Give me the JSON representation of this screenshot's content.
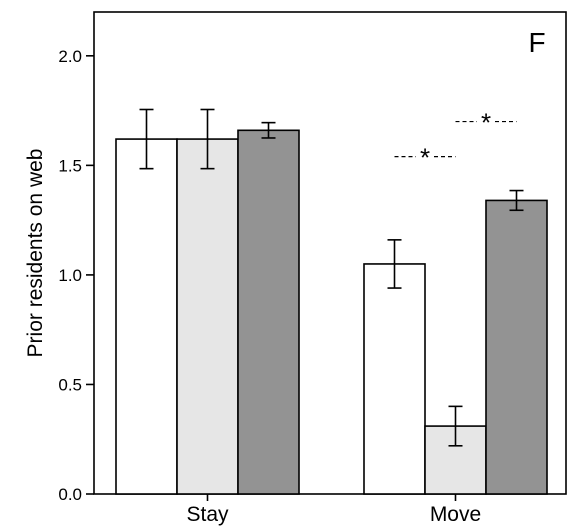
{
  "chart_data": {
    "type": "bar",
    "panel_label": "F",
    "title": "",
    "xlabel": "",
    "ylabel": "Prior residents on web",
    "ylim": [
      0,
      2.2
    ],
    "yticks": [
      0.0,
      0.5,
      1.0,
      1.5,
      2.0
    ],
    "ytick_labels": [
      "0.0",
      "0.5",
      "1.0",
      "1.5",
      "2.0"
    ],
    "categories": [
      "Stay",
      "Move"
    ],
    "grid": false,
    "legend": "none",
    "series": [
      {
        "color": "#ffffff",
        "values": [
          1.62,
          1.05
        ],
        "errors": [
          0.135,
          0.11
        ]
      },
      {
        "color": "#e6e6e6",
        "values": [
          1.62,
          0.31
        ],
        "errors": [
          0.135,
          0.09
        ]
      },
      {
        "color": "#939393",
        "values": [
          1.66,
          1.34
        ],
        "errors": [
          0.035,
          0.045
        ]
      }
    ],
    "annotations": [
      {
        "text": "*",
        "category": "Move",
        "from_series": 0,
        "to_series": 1,
        "y": 1.54
      },
      {
        "text": "*",
        "category": "Move",
        "from_series": 1,
        "to_series": 2,
        "y": 1.7
      }
    ]
  }
}
